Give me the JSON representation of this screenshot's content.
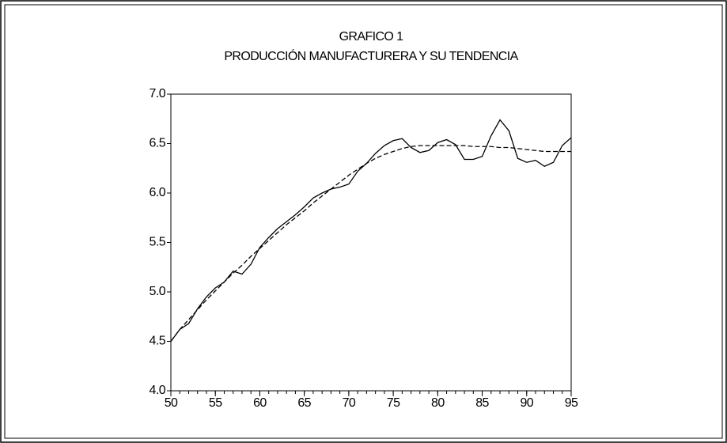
{
  "chart_data": {
    "type": "line",
    "title": "GRAFICO 1",
    "subtitle": "PRODUCCIÓN MANUFACTURERA Y SU TENDENCIA",
    "x": [
      50,
      51,
      52,
      53,
      54,
      55,
      56,
      57,
      58,
      59,
      60,
      61,
      62,
      63,
      64,
      65,
      66,
      67,
      68,
      69,
      70,
      71,
      72,
      73,
      74,
      75,
      76,
      77,
      78,
      79,
      80,
      81,
      82,
      83,
      84,
      85,
      86,
      87,
      88,
      89,
      90,
      91,
      92,
      93,
      94,
      95
    ],
    "series": [
      {
        "color": "#000000",
        "line_style": "solid",
        "values": [
          4.5,
          4.62,
          4.68,
          4.83,
          4.95,
          5.04,
          5.1,
          5.21,
          5.18,
          5.28,
          5.45,
          5.55,
          5.64,
          5.71,
          5.78,
          5.86,
          5.95,
          6.0,
          6.04,
          6.06,
          6.09,
          6.22,
          6.3,
          6.4,
          6.48,
          6.53,
          6.55,
          6.46,
          6.41,
          6.43,
          6.51,
          6.54,
          6.49,
          6.34,
          6.34,
          6.37,
          6.58,
          6.74,
          6.63,
          6.35,
          6.31,
          6.33,
          6.27,
          6.31,
          6.48,
          6.56
        ]
      },
      {
        "color": "#000000",
        "line_style": "dashed",
        "values": [
          4.5,
          4.62,
          4.72,
          4.82,
          4.92,
          5.01,
          5.1,
          5.19,
          5.27,
          5.36,
          5.44,
          5.52,
          5.6,
          5.68,
          5.75,
          5.82,
          5.9,
          5.97,
          6.04,
          6.11,
          6.18,
          6.24,
          6.3,
          6.35,
          6.39,
          6.42,
          6.45,
          6.47,
          6.48,
          6.48,
          6.48,
          6.48,
          6.48,
          6.48,
          6.47,
          6.47,
          6.47,
          6.46,
          6.46,
          6.45,
          6.44,
          6.43,
          6.42,
          6.42,
          6.42,
          6.42
        ]
      }
    ],
    "xlim": [
      50,
      95
    ],
    "xticks": [
      50,
      55,
      60,
      65,
      70,
      75,
      80,
      85,
      90,
      95
    ],
    "ylim": [
      4,
      7
    ],
    "yticks": [
      {
        "value": 4,
        "label": "4.0"
      },
      {
        "value": 4.5,
        "label": "4.5"
      },
      {
        "value": 5,
        "label": "5.0"
      },
      {
        "value": 5.5,
        "label": "5.5"
      },
      {
        "value": 6,
        "label": "6.0"
      },
      {
        "value": 6.5,
        "label": "6.5"
      },
      {
        "value": 7,
        "label": "7.0"
      }
    ],
    "grid": false
  }
}
